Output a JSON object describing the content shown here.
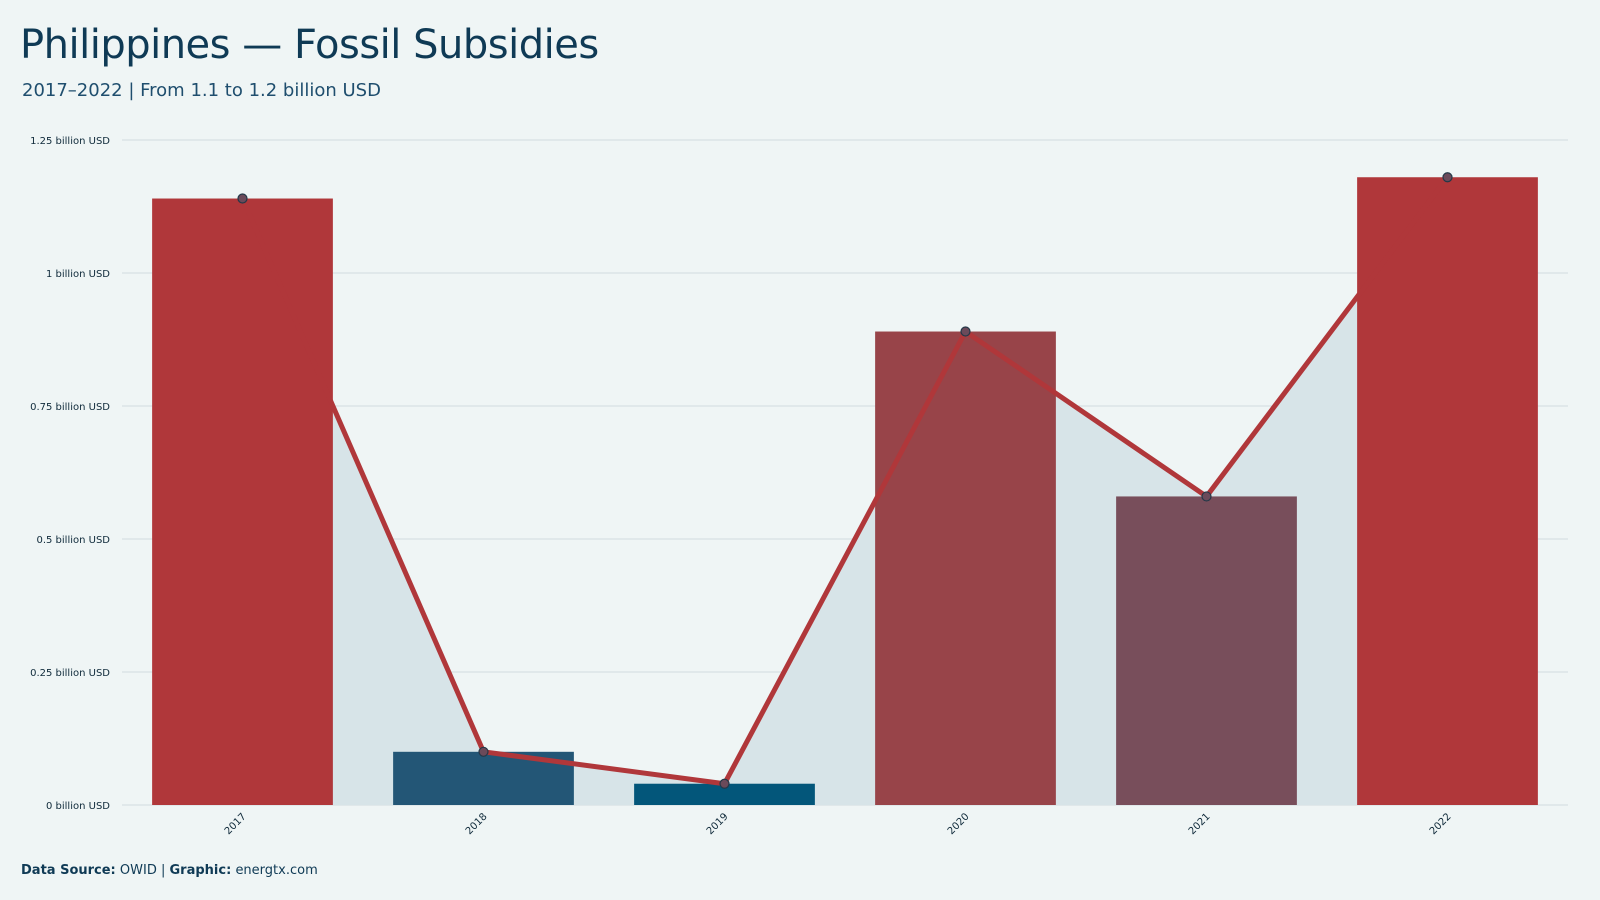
{
  "title": "Philippines — Fossil Subsidies",
  "subtitle": "2017–2022 | From 1.1 to 1.2 billion USD",
  "footer": {
    "source_label": "Data Source:",
    "source_value": "OWID",
    "separator": "|",
    "graphic_label": "Graphic:",
    "graphic_value": "energtx.com"
  },
  "chart_data": {
    "type": "bar",
    "categories": [
      "2017",
      "2018",
      "2019",
      "2020",
      "2021",
      "2022"
    ],
    "values": [
      1.14,
      0.1,
      0.04,
      0.89,
      0.58,
      1.18
    ],
    "bar_colors": [
      "#b0373a",
      "#235676",
      "#03567a",
      "#984449",
      "#784e5b",
      "#b0373a"
    ],
    "line_color": "#b0373a",
    "area_color": "#d7e4e8",
    "yunit": "billion USD",
    "yticks": [
      {
        "value": 0,
        "label": "0 billion USD"
      },
      {
        "value": 0.25,
        "label": "0.25 billion USD"
      },
      {
        "value": 0.5,
        "label": "0.5 billion USD"
      },
      {
        "value": 0.75,
        "label": "0.75 billion USD"
      },
      {
        "value": 1,
        "label": "1 billion USD"
      },
      {
        "value": 1.25,
        "label": "1.25 billion USD"
      }
    ],
    "ylim": [
      0,
      1.25
    ],
    "grid": true,
    "legend": "none"
  }
}
